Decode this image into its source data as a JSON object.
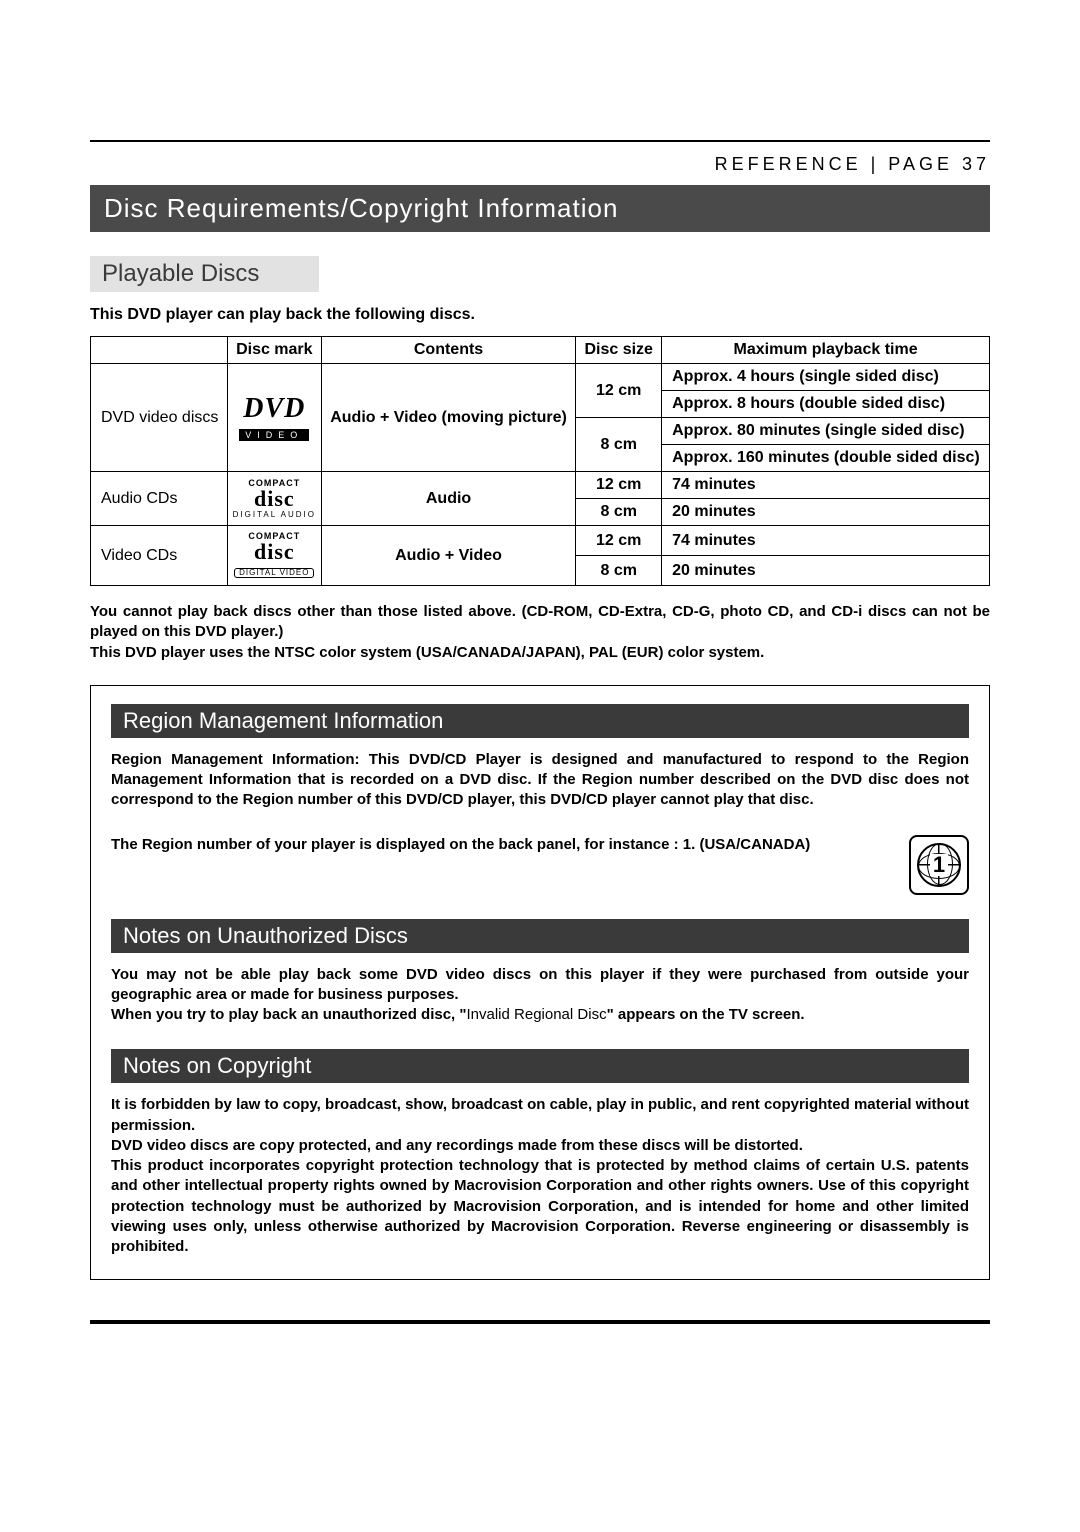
{
  "header": {
    "ref": "REFERENCE",
    "sep": " | ",
    "page": "PAGE 37"
  },
  "main_title": "Disc Requirements/Copyright Information",
  "playable": {
    "heading": "Playable Discs",
    "intro": "This DVD player can play back the following discs.",
    "table": {
      "headers": [
        "",
        "Disc mark",
        "Contents",
        "Disc size",
        "Maximum playback time"
      ],
      "rows": {
        "dvd": {
          "label": "DVD video discs",
          "logo": {
            "main": "DVD",
            "sub": "VIDEO"
          },
          "contents": "Audio + Video (moving picture)",
          "sizes": [
            {
              "size": "12 cm",
              "times": [
                "Approx. 4 hours (single sided disc)",
                "Approx. 8 hours (double sided disc)"
              ]
            },
            {
              "size": "8 cm",
              "times": [
                "Approx. 80 minutes (single sided disc)",
                "Approx. 160 minutes (double sided disc)"
              ]
            }
          ]
        },
        "audio_cd": {
          "label": "Audio CDs",
          "logo": {
            "compact": "COMPACT",
            "disc": "disc",
            "sub": "DIGITAL AUDIO"
          },
          "contents": "Audio",
          "sizes": [
            {
              "size": "12 cm",
              "time": "74 minutes"
            },
            {
              "size": "8 cm",
              "time": "20 minutes"
            }
          ]
        },
        "video_cd": {
          "label": "Video CDs",
          "logo": {
            "compact": "COMPACT",
            "disc": "disc",
            "sub": "DIGITAL VIDEO"
          },
          "contents": "Audio + Video",
          "sizes": [
            {
              "size": "12 cm",
              "time": "74 minutes"
            },
            {
              "size": "8 cm",
              "time": "20 minutes"
            }
          ]
        }
      }
    },
    "notes": "You cannot play back discs other than those listed above. (CD-ROM, CD-Extra, CD-G, photo CD, and CD-i discs can not be played on this DVD player.)\nThis DVD player uses the NTSC color system (USA/CANADA/JAPAN), PAL (EUR) color system."
  },
  "region": {
    "heading": "Region Management Information",
    "body": "Region Management Information: This DVD/CD Player is designed and manufactured to respond to the Region Management Information that is recorded on a DVD disc. If the Region number described on the DVD disc does not correspond to the Region number of this DVD/CD player, this DVD/CD player cannot play that disc.",
    "footer": "The Region number of your player is displayed on the back panel, for instance : 1. (USA/CANADA)",
    "globe_number": "1"
  },
  "unauthorized": {
    "heading": "Notes on Unauthorized Discs",
    "body1": "You may not be able play back some DVD video discs on this player if they were purchased from outside your geographic area or made for business purposes.",
    "body2a": "When you try to play back an unauthorized disc, \"",
    "body2b": "Invalid Regional Disc",
    "body2c": "\" appears on the TV screen."
  },
  "copyright": {
    "heading": "Notes on Copyright",
    "p1": "It is forbidden by law to copy, broadcast, show, broadcast on cable, play in public, and rent copyrighted material without permission.",
    "p2": "DVD video discs are copy protected, and any recordings made from these discs will be distorted.",
    "p3": "This product incorporates copyright protection technology that is protected by method claims of certain U.S. patents and other intellectual property rights owned by Macrovision Corporation and other rights owners. Use of this copyright protection technology must be authorized by Macrovision Corporation, and is intended for home and other limited viewing uses only, unless otherwise authorized by Macrovision Corporation. Reverse engineering or disassembly is prohibited."
  }
}
